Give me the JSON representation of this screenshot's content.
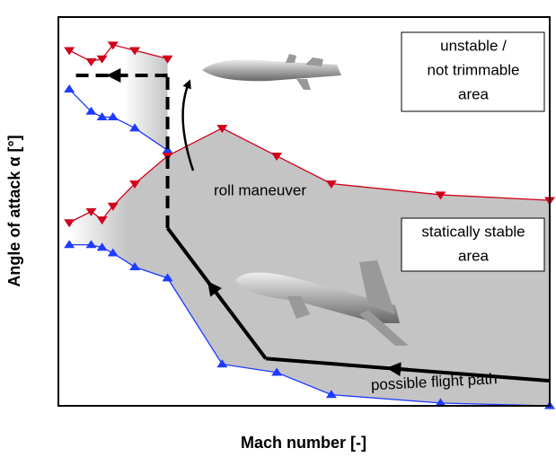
{
  "chart_data": {
    "type": "line",
    "x_label": "Mach number [-]",
    "y_label": "Angle of attack α [°]",
    "xlim": [
      0.5,
      5
    ],
    "ylim": [
      -50,
      20
    ],
    "xticks": [
      0.5,
      1,
      1.5,
      2,
      2.5,
      3,
      3.5,
      4,
      4.5,
      5
    ],
    "yticks": [
      -50,
      -40,
      -30,
      -20,
      -10,
      0,
      10,
      20
    ],
    "grid": true,
    "series": [
      {
        "color": "#d0021b",
        "marker": "triangle-down",
        "x": [
          0.6,
          0.8,
          0.9,
          1.0,
          1.2,
          1.5
        ],
        "values": [
          14,
          12,
          12.5,
          15,
          14,
          12.5
        ]
      },
      {
        "color": "#1f3bff",
        "marker": "triangle-up",
        "x": [
          0.6,
          0.8,
          0.9,
          1.0,
          1.2,
          1.5
        ],
        "values": [
          7,
          3,
          2,
          2,
          0,
          -4
        ]
      },
      {
        "color": "#d0021b",
        "marker": "triangle-down",
        "x": [
          0.6,
          0.8,
          0.9,
          1.0,
          1.2,
          1.5,
          2,
          2.5,
          3,
          4,
          5
        ],
        "values": [
          -17,
          -15,
          -16.5,
          -14,
          -10,
          -5,
          0,
          -5,
          -10,
          -12,
          -13
        ]
      },
      {
        "color": "#1f3bff",
        "marker": "triangle-up",
        "x": [
          0.6,
          0.8,
          0.9,
          1.0,
          1.2,
          1.5,
          2,
          2.5,
          3,
          4,
          5
        ],
        "values": [
          -21,
          -21,
          -21.5,
          -22.5,
          -25,
          -27,
          -42.5,
          -44,
          -48,
          -49.5,
          -50
        ]
      }
    ],
    "flight_path": {
      "x": [
        0.6,
        1.5,
        1.5,
        2.4,
        5
      ],
      "y": [
        9.5,
        9.5,
        -18,
        -41.5,
        -45.5
      ]
    },
    "annotations": {
      "unstable": [
        "unstable /",
        "not trimmable",
        "area"
      ],
      "stable": [
        "statically stable",
        "area"
      ],
      "roll": "roll maneuver",
      "path": "possible flight path"
    }
  }
}
